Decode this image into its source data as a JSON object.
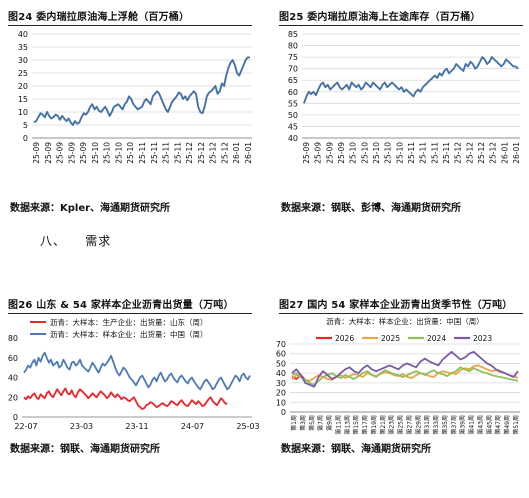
{
  "section": {
    "number": "八、",
    "title": "需求"
  },
  "charts": [
    {
      "caption": "图24  委内瑞拉原油海上浮舱（百万桶）",
      "source": "数据来源：Kpler、海通期货研究所",
      "chart_data": {
        "type": "line",
        "ylim": [
          0,
          40
        ],
        "yticks": [
          0,
          5,
          10,
          15,
          20,
          25,
          30,
          35,
          40
        ],
        "grid": "horizontal",
        "xticks": [
          "25-09",
          "25-09",
          "25-09",
          "25-09",
          "25-09",
          "25-10",
          "25-10",
          "25-10",
          "25-10",
          "25-11",
          "25-11",
          "25-11",
          "25-11",
          "25-12",
          "25-12",
          "25-12",
          "25-12",
          "26-01",
          "26-01"
        ],
        "series": [
          {
            "color": "#4472a8",
            "values": [
              6,
              6.5,
              8,
              9.5,
              9,
              8,
              10,
              8.5,
              7.5,
              8,
              9,
              8.5,
              7,
              8.5,
              7.5,
              6.5,
              7.5,
              6,
              5,
              6.5,
              5.5,
              6,
              8,
              9.5,
              9,
              10,
              12,
              13,
              11,
              12,
              10.5,
              10,
              11,
              12,
              10.5,
              8.5,
              10,
              12,
              12.5,
              13,
              12,
              11,
              13,
              14,
              16,
              15,
              13,
              12,
              11,
              11.5,
              12,
              14,
              15,
              14,
              13,
              16,
              17,
              18,
              17,
              15,
              13,
              11,
              10,
              12,
              14,
              15,
              16,
              17.5,
              17,
              15,
              16,
              14.5,
              16,
              17,
              18,
              17,
              12,
              10,
              9.5,
              12,
              16,
              17.5,
              18,
              19,
              20,
              17,
              18,
              21,
              20,
              24,
              27,
              29,
              30,
              28,
              25,
              24,
              26,
              28,
              30,
              31,
              31
            ]
          }
        ]
      }
    },
    {
      "caption": "图25  委内瑞拉原油海上在途库存（百万桶）",
      "source": "数据来源：钢联、彭博、海通期货研究所",
      "chart_data": {
        "type": "line",
        "ylim": [
          40,
          85
        ],
        "yticks": [
          40,
          45,
          50,
          55,
          60,
          65,
          70,
          75,
          80,
          85
        ],
        "grid": "horizontal",
        "xticks": [
          "25-09",
          "25-09",
          "25-09",
          "25-09",
          "25-10",
          "25-10",
          "25-10",
          "25-10",
          "25-10",
          "25-11",
          "25-11",
          "25-11",
          "25-11",
          "25-12",
          "25-12",
          "25-12",
          "25-12",
          "26-01",
          "26-01"
        ],
        "series": [
          {
            "color": "#4472a8",
            "values": [
              55,
              58,
              60,
              59,
              60,
              58.5,
              61,
              63,
              64,
              62,
              63,
              61,
              62,
              63,
              64,
              62,
              61,
              62,
              63,
              61,
              64,
              63,
              62,
              63,
              61,
              62,
              64,
              63,
              62,
              64,
              63,
              62,
              61,
              63,
              64,
              62,
              63,
              64,
              63,
              62,
              61,
              62,
              60,
              61,
              60,
              59,
              58,
              60,
              61,
              60,
              62,
              63,
              64,
              65,
              66,
              67,
              66,
              68,
              67,
              69,
              70,
              68,
              69,
              70,
              72,
              71,
              70,
              69,
              72,
              71,
              73,
              72,
              70,
              71,
              73,
              75,
              74,
              72,
              73,
              75,
              74,
              73,
              72,
              71,
              72,
              74,
              73,
              72,
              71,
              71,
              70
            ]
          }
        ]
      }
    },
    {
      "caption": "图26  山东 & 54 家样本企业沥青出货量（万吨）",
      "source": "数据来源：钢联、海通期货研究所",
      "chart_data": {
        "type": "line",
        "ylim": [
          0,
          80
        ],
        "yticks": [
          0,
          20,
          40,
          60,
          80
        ],
        "grid": "none",
        "legend": "top-left",
        "xticks": [
          "22-07",
          "23-03",
          "23-11",
          "24-07",
          "25-03"
        ],
        "series": [
          {
            "name": "沥青：大样本：生产企业：出货量：山东（周）",
            "color": "#e8262b",
            "values": [
              20,
              18,
              21,
              19,
              22,
              24,
              20,
              18,
              23,
              21,
              19,
              24,
              26,
              22,
              20,
              24,
              28,
              25,
              22,
              26,
              29,
              24,
              23,
              27,
              22,
              20,
              25,
              28,
              26,
              24,
              22,
              19,
              21,
              24,
              22,
              20,
              23,
              26,
              24,
              22,
              19,
              21,
              25,
              22,
              20,
              23,
              21,
              18,
              20,
              19,
              17,
              16,
              18,
              20,
              16,
              12,
              10,
              8,
              9,
              12,
              13,
              15,
              14,
              12,
              10,
              11,
              13,
              14,
              12,
              11,
              13,
              16,
              15,
              13,
              12,
              15,
              17,
              14,
              12,
              11,
              14,
              17,
              15,
              13,
              16,
              14,
              11,
              12,
              15,
              18,
              20,
              16,
              14,
              12,
              15,
              19,
              17,
              14,
              13
            ]
          },
          {
            "name": "沥青：大样本：样本企业：出货量：中国（周）",
            "color": "#4c7ab5",
            "values": [
              45,
              48,
              52,
              50,
              55,
              58,
              52,
              60,
              56,
              62,
              65,
              60,
              55,
              58,
              52,
              54,
              56,
              50,
              52,
              58,
              54,
              50,
              48,
              55,
              56,
              52,
              54,
              58,
              52,
              50,
              48,
              46,
              50,
              55,
              52,
              48,
              45,
              50,
              54,
              52,
              55,
              58,
              62,
              56,
              50,
              45,
              42,
              46,
              50,
              48,
              44,
              40,
              38,
              35,
              32,
              36,
              40,
              42,
              38,
              34,
              30,
              33,
              38,
              40,
              36,
              42,
              45,
              40,
              36,
              38,
              42,
              44,
              40,
              37,
              35,
              40,
              42,
              39,
              36,
              34,
              38,
              40,
              36,
              33,
              30,
              28,
              32,
              36,
              38,
              35,
              32,
              28,
              30,
              34,
              38,
              40,
              36,
              32,
              28,
              30,
              34,
              38,
              42,
              40,
              36,
              42,
              44,
              40,
              38,
              42
            ]
          }
        ]
      }
    },
    {
      "caption": "图27  国内 54 家样本企业沥青出货季节性（万吨）",
      "source": "数据来源：钢联、海通期货研究所",
      "chart_data": {
        "type": "line",
        "ylim": [
          0,
          70
        ],
        "yticks": [
          0,
          10,
          20,
          30,
          40,
          50,
          60,
          70
        ],
        "grid": "horizontal",
        "legend": "top",
        "title": "沥青：大样本：样本企业：出货量：中国（周）",
        "xticks": [
          "第1周",
          "第3周",
          "第5周",
          "第7周",
          "第9周",
          "第11周",
          "第13周",
          "第15周",
          "第17周",
          "第19周",
          "第21周",
          "第23周",
          "第25周",
          "第27周",
          "第29周",
          "第31周",
          "第33周",
          "第35周",
          "第37周",
          "第39周",
          "第41周",
          "第43周",
          "第45周",
          "第47周",
          "第49周",
          "第51周"
        ],
        "series": [
          {
            "name": "2026",
            "color": "#e8262b",
            "values": [
              36,
              34,
              38,
              33
            ]
          },
          {
            "name": "2025",
            "color": "#f0a24a",
            "values": [
              34,
              38,
              36,
              33,
              32,
              35,
              38,
              36,
              34,
              33,
              36,
              38,
              35,
              37,
              39,
              38,
              36,
              40,
              38,
              37,
              39,
              41,
              40,
              38,
              37,
              39,
              36,
              35,
              38,
              40,
              39,
              37,
              36,
              40,
              42,
              41,
              40,
              39,
              43,
              45,
              44,
              47,
              48,
              46,
              44,
              42,
              43,
              41,
              40,
              38,
              37,
              35
            ]
          },
          {
            "name": "2024",
            "color": "#8fc15a",
            "values": [
              38,
              40,
              36,
              33,
              30,
              28,
              32,
              36,
              38,
              40,
              37,
              35,
              38,
              36,
              34,
              37,
              40,
              42,
              38,
              36,
              40,
              43,
              41,
              39,
              38,
              36,
              38,
              40,
              42,
              40,
              38,
              41,
              43,
              40,
              39,
              37,
              40,
              42,
              46,
              44,
              42,
              45,
              43,
              41,
              40,
              38,
              37,
              36,
              35,
              34,
              33,
              32
            ]
          },
          {
            "name": "2023",
            "color": "#7b5aa6",
            "values": [
              40,
              44,
              38,
              30,
              28,
              26,
              36,
              42,
              38,
              34,
              36,
              40,
              44,
              46,
              42,
              40,
              45,
              48,
              44,
              42,
              44,
              46,
              48,
              46,
              44,
              48,
              50,
              48,
              46,
              52,
              55,
              52,
              50,
              48,
              54,
              58,
              62,
              58,
              54,
              56,
              60,
              62,
              58,
              54,
              50,
              48,
              44,
              42,
              40,
              38,
              36,
              42
            ]
          }
        ]
      }
    }
  ]
}
